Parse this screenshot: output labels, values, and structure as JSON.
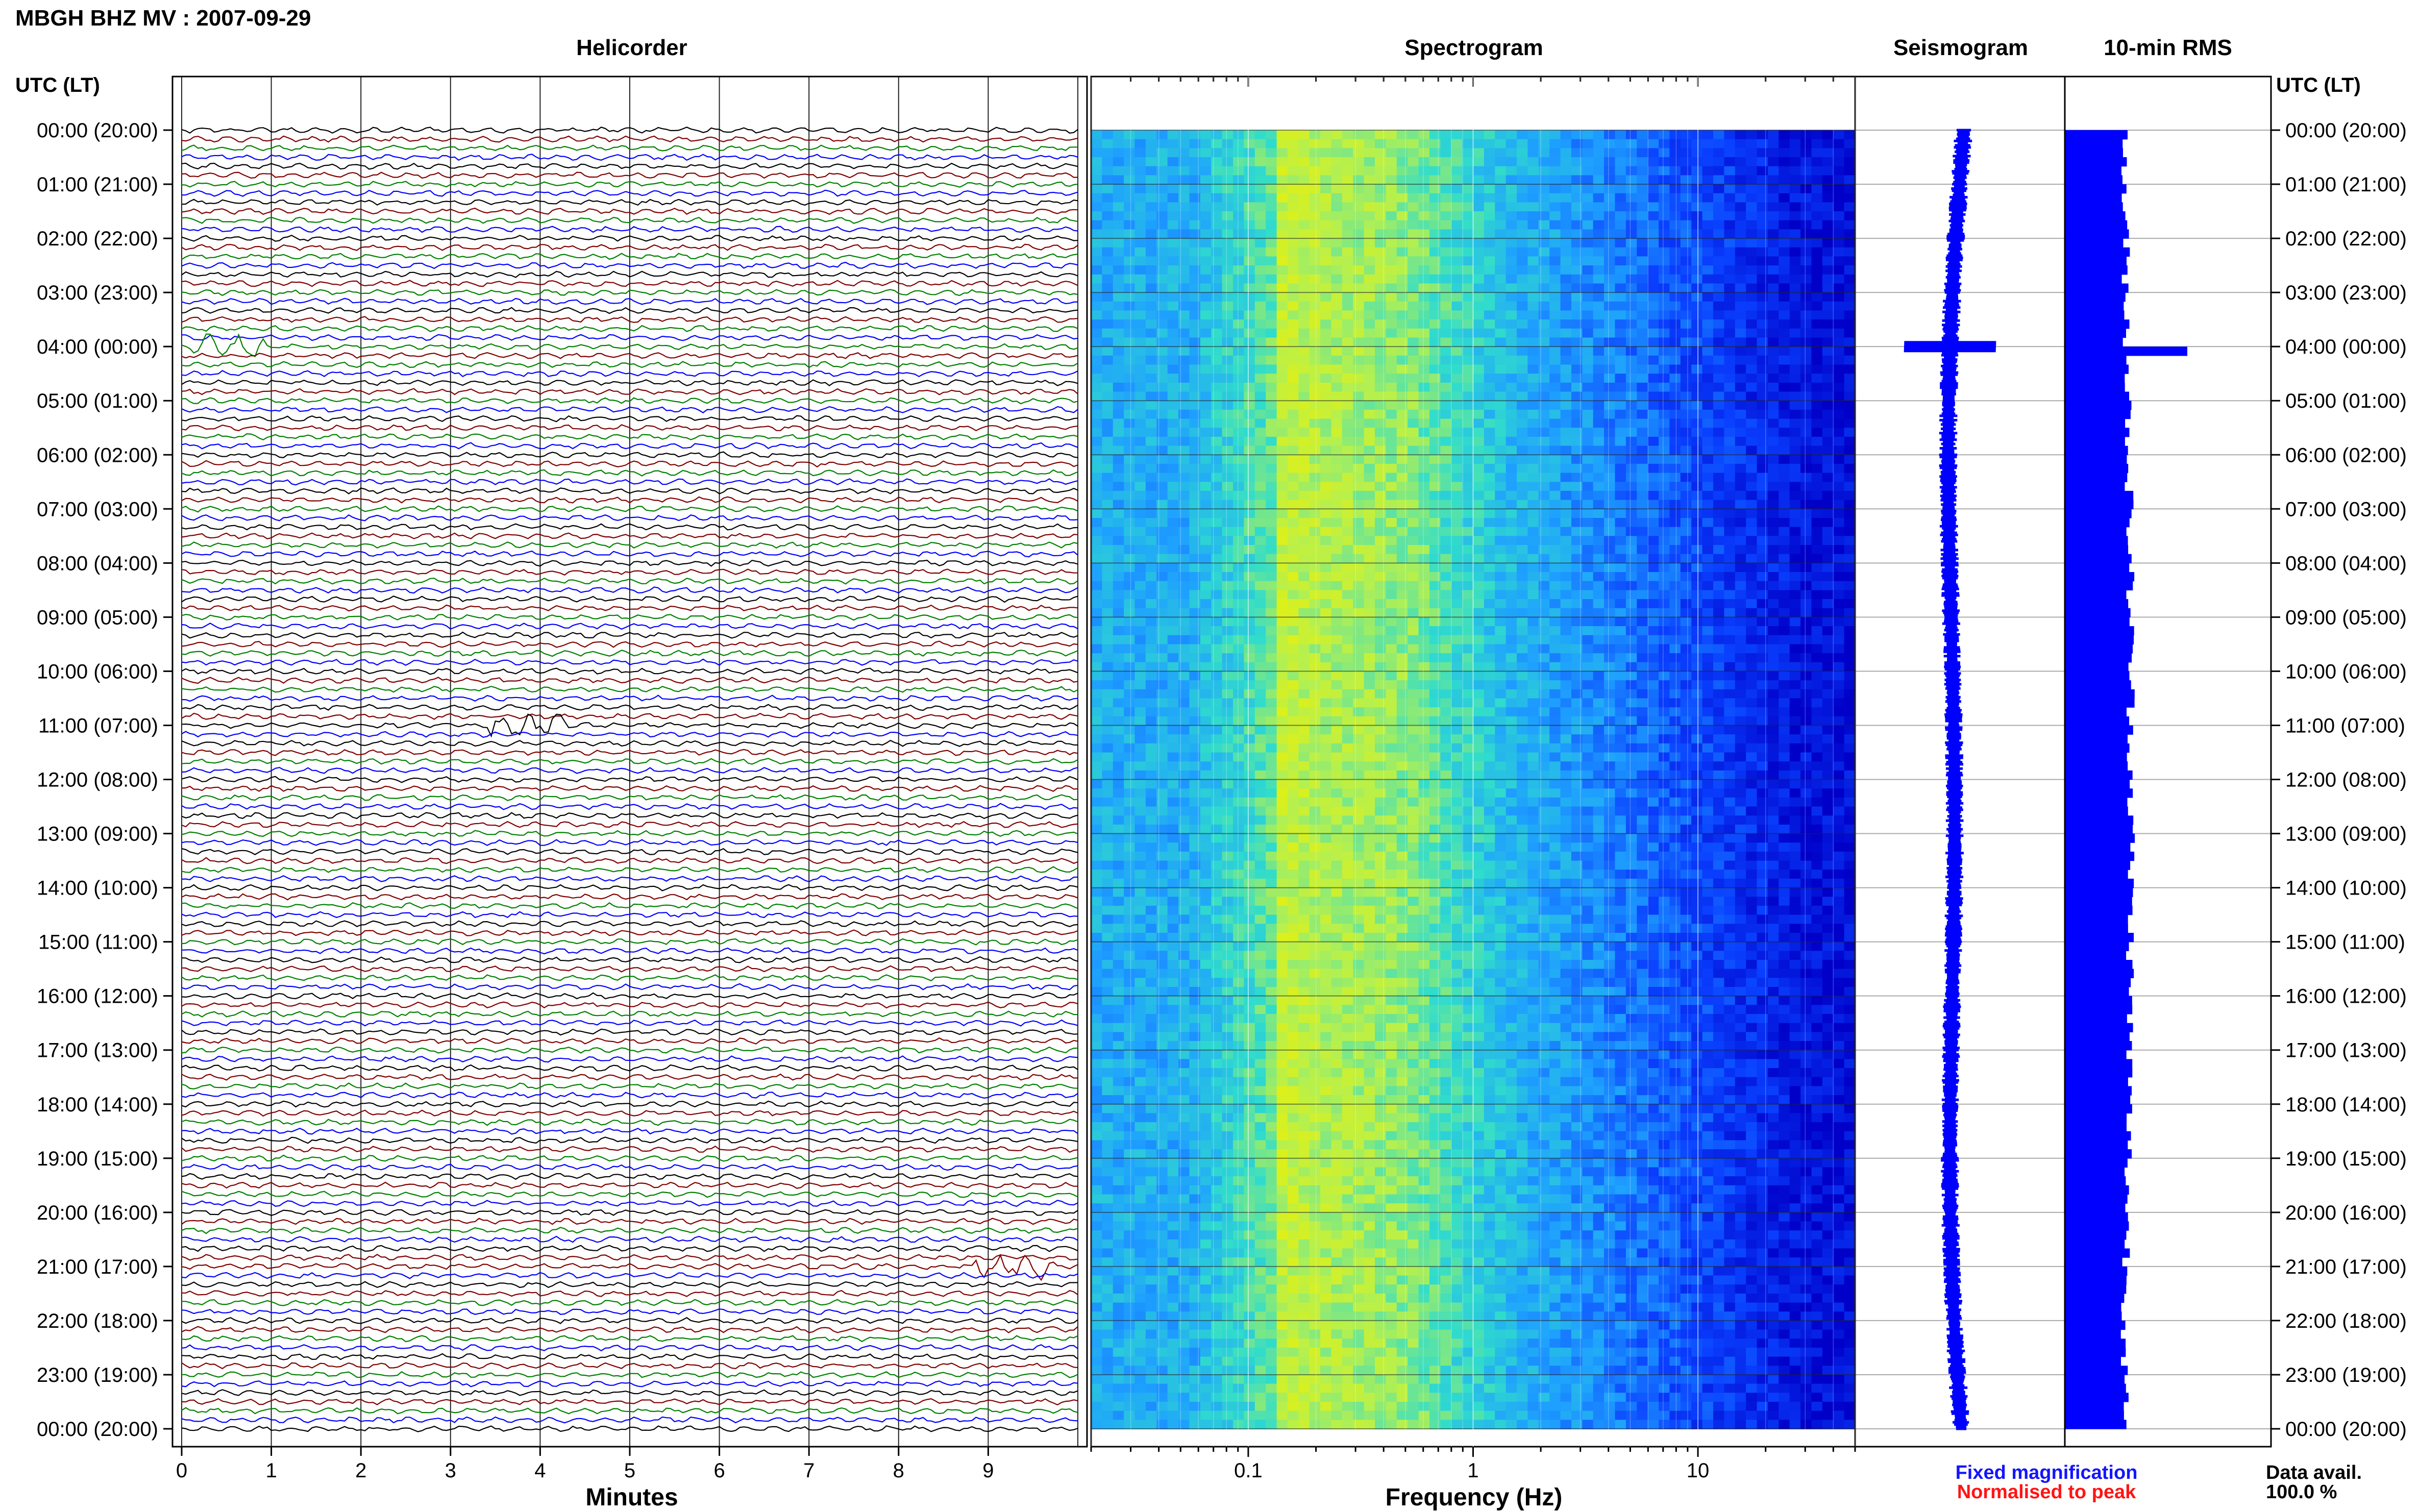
{
  "header": {
    "title": "MBGH BHZ MV : 2007-09-29"
  },
  "panels": {
    "helicorder": "Helicorder",
    "spectrogram": "Spectrogram",
    "seismogram": "Seismogram",
    "rms": "10-min RMS"
  },
  "axes": {
    "left_time_label": "UTC (LT)",
    "right_time_label": "UTC (LT)",
    "minutes_label": "Minutes",
    "frequency_label": "Frequency (Hz)"
  },
  "legend": {
    "fixed": "Fixed magnification",
    "normalised": "Normalised to peak",
    "fixed_color": "#1414ff",
    "normalised_color": "#ff1414"
  },
  "availability": {
    "label": "Data avail.",
    "value": "100.0 %"
  },
  "chart_data": [
    {
      "type": "line",
      "panel": "Helicorder",
      "xlabel": "Minutes",
      "xlim": [
        0,
        10
      ],
      "x_ticks": [
        "0",
        "1",
        "2",
        "3",
        "4",
        "5",
        "6",
        "7",
        "8",
        "9"
      ],
      "y_ticks": [
        "00:00 (20:00)",
        "01:00 (21:00)",
        "02:00 (22:00)",
        "03:00 (23:00)",
        "04:00 (00:00)",
        "05:00 (01:00)",
        "06:00 (02:00)",
        "07:00 (03:00)",
        "08:00 (04:00)",
        "09:00 (05:00)",
        "10:00 (06:00)",
        "11:00 (07:00)",
        "12:00 (08:00)",
        "13:00 (09:00)",
        "14:00 (10:00)",
        "15:00 (11:00)",
        "16:00 (12:00)",
        "17:00 (13:00)",
        "18:00 (14:00)",
        "19:00 (15:00)",
        "20:00 (16:00)",
        "21:00 (17:00)",
        "22:00 (18:00)",
        "23:00 (19:00)",
        "00:00 (20:00)"
      ],
      "trace_colors": [
        "#000000",
        "#800000",
        "#008000",
        "#0000ff"
      ],
      "traces_per_hour": 6,
      "events": [
        {
          "time": "04:00",
          "minute": 0.5,
          "color": "#008000"
        },
        {
          "time": "11:00",
          "minute": 3.9,
          "color": "#000000"
        },
        {
          "time": "21:00",
          "minute": 9.3,
          "color": "#800000"
        }
      ]
    },
    {
      "type": "heatmap",
      "panel": "Spectrogram",
      "xlabel": "Frequency (Hz)",
      "x_scale": "log",
      "xlim": [
        0.02,
        50
      ],
      "x_ticks": [
        "0.1",
        "1",
        "10"
      ],
      "colormap": [
        "#0000c8",
        "#0a40ff",
        "#1ea0ff",
        "#30dccc",
        "#b4f050",
        "#f0f000"
      ]
    },
    {
      "type": "line",
      "panel": "Seismogram",
      "color": "#0000ff"
    },
    {
      "type": "bar",
      "panel": "10-min RMS",
      "color": "#0000ff",
      "orientation": "horizontal",
      "peak_time": "04:00"
    }
  ]
}
